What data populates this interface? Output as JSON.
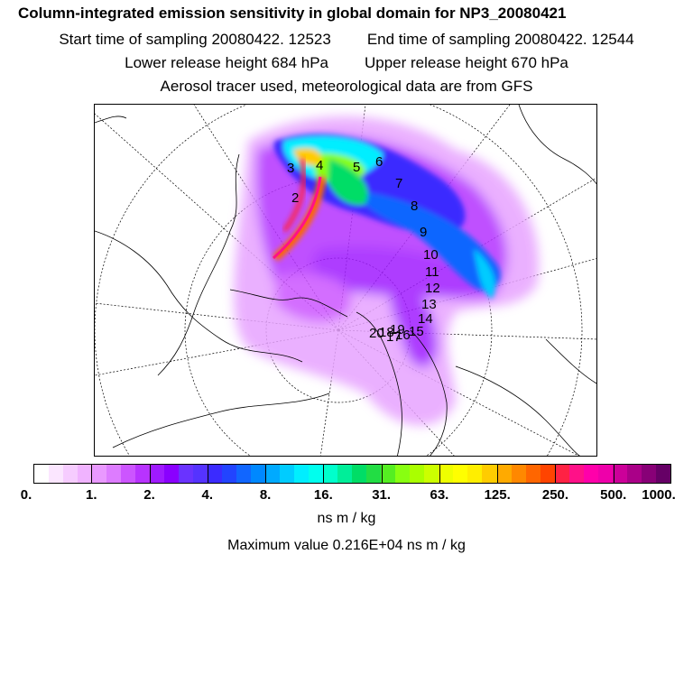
{
  "titles": {
    "main": "Column-integrated emission sensitivity in global domain for NP3_20080421",
    "start": "Start time of sampling 20080422. 12523",
    "end": "End time of sampling 20080422. 12544",
    "lower": "Lower release height  684 hPa",
    "upper": "Upper release height  670 hPa",
    "tracer": "Aerosol tracer used, meteorological data are from GFS"
  },
  "chart_data": {
    "type": "heatmap",
    "title": "Column-integrated emission sensitivity in global domain for NP3_20080421",
    "projection": "polar stereographic (Arctic)",
    "colorbar": {
      "ticks": [
        "0.",
        "1.",
        "2.",
        "4.",
        "8.",
        "16.",
        "31.",
        "63.",
        "125.",
        "250.",
        "500.",
        "1000."
      ],
      "unit": "ns m / kg",
      "colors": [
        "#ffffff",
        "#fbe6ff",
        "#f6ccff",
        "#f0b3ff",
        "#e999ff",
        "#dd7cff",
        "#cc55ff",
        "#b833ff",
        "#9f1aff",
        "#8a00ff",
        "#6a33ff",
        "#5533ff",
        "#3b2bff",
        "#2244ff",
        "#1166ff",
        "#0088ff",
        "#00aaff",
        "#00ccff",
        "#00eeff",
        "#00ffee",
        "#00ffcc",
        "#00ee99",
        "#00dd66",
        "#22dd44",
        "#55ee22",
        "#88ff11",
        "#aaff00",
        "#ccff00",
        "#eeff00",
        "#ffff00",
        "#ffee00",
        "#ffcc00",
        "#ffaa00",
        "#ff8800",
        "#ff6600",
        "#ff4400",
        "#ff2244",
        "#ff1188",
        "#ff00aa",
        "#ee00aa",
        "#cc0099",
        "#aa0088",
        "#880077",
        "#660066"
      ]
    },
    "trajectory_labels": [
      "2",
      "3",
      "4",
      "5",
      "6",
      "7",
      "8",
      "9",
      "10",
      "11",
      "12",
      "13",
      "14",
      "15",
      "16",
      "17",
      "18",
      "19",
      "20"
    ],
    "max_value": "Maximum value  0.216E+04 ns m / kg"
  }
}
